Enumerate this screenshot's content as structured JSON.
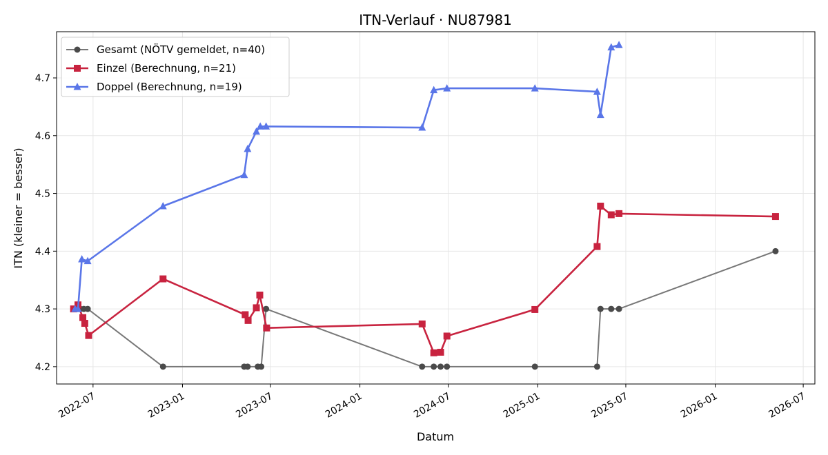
{
  "chart_data": {
    "type": "line",
    "title": "ITN-Verlauf · NU87981",
    "xlabel": "Datum",
    "ylabel": "ITN  (kleiner = besser)",
    "x_axis_type": "date",
    "xlim": [
      "2022-04-17",
      "2026-07-25"
    ],
    "ylim": [
      4.17,
      4.78
    ],
    "x_ticks": [
      "2022-07-01",
      "2023-01-01",
      "2023-07-01",
      "2024-01-01",
      "2024-07-01",
      "2025-01-01",
      "2025-07-01",
      "2026-01-01",
      "2026-07-01"
    ],
    "x_tick_labels": [
      "2022-07",
      "2023-01",
      "2023-07",
      "2024-01",
      "2024-07",
      "2025-01",
      "2025-07",
      "2026-01",
      "2026-07"
    ],
    "y_ticks": [
      4.2,
      4.3,
      4.4,
      4.5,
      4.6,
      4.7
    ],
    "y_tick_labels": [
      "4.2",
      "4.3",
      "4.4",
      "4.5",
      "4.6",
      "4.7"
    ],
    "grid": true,
    "legend_position": "top-left",
    "series": [
      {
        "name": "Gesamt (NÖTV gemeldet, n=40)",
        "color": "#777777",
        "marker": "circle",
        "points": [
          {
            "x": "2022-05-22",
            "y": 4.3
          },
          {
            "x": "2022-05-25",
            "y": 4.3
          },
          {
            "x": "2022-06-05",
            "y": 4.3
          },
          {
            "x": "2022-06-12",
            "y": 4.3
          },
          {
            "x": "2022-06-20",
            "y": 4.3
          },
          {
            "x": "2022-11-22",
            "y": 4.2
          },
          {
            "x": "2023-05-08",
            "y": 4.2
          },
          {
            "x": "2023-05-15",
            "y": 4.2
          },
          {
            "x": "2023-06-05",
            "y": 4.2
          },
          {
            "x": "2023-06-12",
            "y": 4.2
          },
          {
            "x": "2023-06-22",
            "y": 4.3
          },
          {
            "x": "2024-05-08",
            "y": 4.2
          },
          {
            "x": "2024-06-01",
            "y": 4.2
          },
          {
            "x": "2024-06-15",
            "y": 4.2
          },
          {
            "x": "2024-06-28",
            "y": 4.2
          },
          {
            "x": "2024-12-26",
            "y": 4.2
          },
          {
            "x": "2025-05-03",
            "y": 4.2
          },
          {
            "x": "2025-05-10",
            "y": 4.3
          },
          {
            "x": "2025-06-01",
            "y": 4.3
          },
          {
            "x": "2025-06-17",
            "y": 4.3
          },
          {
            "x": "2026-05-05",
            "y": 4.4
          }
        ]
      },
      {
        "name": "Einzel (Berechnung, n=21)",
        "color": "#c8233f",
        "marker": "square",
        "points": [
          {
            "x": "2022-05-22",
            "y": 4.3
          },
          {
            "x": "2022-05-31",
            "y": 4.307
          },
          {
            "x": "2022-06-10",
            "y": 4.285
          },
          {
            "x": "2022-06-14",
            "y": 4.275
          },
          {
            "x": "2022-06-22",
            "y": 4.254
          },
          {
            "x": "2022-11-22",
            "y": 4.352
          },
          {
            "x": "2023-05-10",
            "y": 4.29
          },
          {
            "x": "2023-05-16",
            "y": 4.28
          },
          {
            "x": "2023-06-02",
            "y": 4.302
          },
          {
            "x": "2023-06-09",
            "y": 4.324
          },
          {
            "x": "2023-06-23",
            "y": 4.267
          },
          {
            "x": "2024-05-08",
            "y": 4.274
          },
          {
            "x": "2024-06-01",
            "y": 4.224
          },
          {
            "x": "2024-06-15",
            "y": 4.225
          },
          {
            "x": "2024-06-28",
            "y": 4.253
          },
          {
            "x": "2024-12-26",
            "y": 4.299
          },
          {
            "x": "2025-05-03",
            "y": 4.408
          },
          {
            "x": "2025-05-10",
            "y": 4.478
          },
          {
            "x": "2025-06-01",
            "y": 4.463
          },
          {
            "x": "2025-06-17",
            "y": 4.465
          },
          {
            "x": "2026-05-05",
            "y": 4.46
          }
        ]
      },
      {
        "name": "Doppel (Berechnung, n=19)",
        "color": "#5a76e8",
        "marker": "triangle",
        "points": [
          {
            "x": "2022-05-25",
            "y": 4.3
          },
          {
            "x": "2022-05-31",
            "y": 4.3
          },
          {
            "x": "2022-06-08",
            "y": 4.386
          },
          {
            "x": "2022-06-20",
            "y": 4.383
          },
          {
            "x": "2022-11-22",
            "y": 4.478
          },
          {
            "x": "2023-05-08",
            "y": 4.532
          },
          {
            "x": "2023-05-15",
            "y": 4.577
          },
          {
            "x": "2023-06-02",
            "y": 4.607
          },
          {
            "x": "2023-06-10",
            "y": 4.616
          },
          {
            "x": "2023-06-22",
            "y": 4.616
          },
          {
            "x": "2024-05-08",
            "y": 4.614
          },
          {
            "x": "2024-06-01",
            "y": 4.679
          },
          {
            "x": "2024-06-28",
            "y": 4.682
          },
          {
            "x": "2024-12-26",
            "y": 4.682
          },
          {
            "x": "2025-05-03",
            "y": 4.676
          },
          {
            "x": "2025-05-10",
            "y": 4.636
          },
          {
            "x": "2025-06-01",
            "y": 4.753
          },
          {
            "x": "2025-06-17",
            "y": 4.757
          }
        ]
      }
    ]
  }
}
